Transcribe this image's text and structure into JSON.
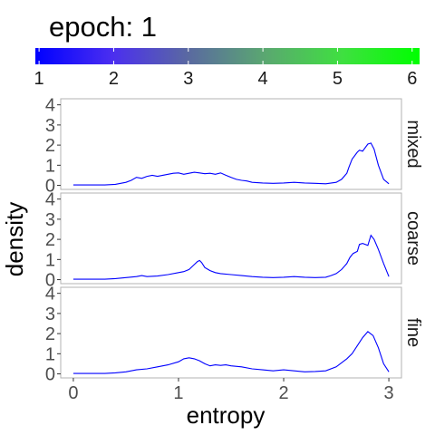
{
  "chart_data": {
    "type": "line",
    "title": "epoch: 1",
    "xlabel": "entropy",
    "ylabel": "density",
    "xlim": [
      -0.12,
      3.12
    ],
    "ylim": [
      -0.2,
      4.3
    ],
    "x_ticks": [
      0,
      1,
      2,
      3
    ],
    "y_ticks": [
      0,
      1,
      2,
      3,
      4
    ],
    "line_color": "#0000ff",
    "colorbar": {
      "min": 0.95,
      "max": 6.1,
      "ticks": [
        1,
        2,
        3,
        4,
        5,
        6
      ],
      "colors": [
        "#0000ff",
        "#4b2ef0",
        "#5a6aa0",
        "#5aa870",
        "#3fe040",
        "#00ff00"
      ]
    },
    "panels": [
      {
        "label": "mixed",
        "x": [
          0,
          0.1,
          0.2,
          0.3,
          0.4,
          0.5,
          0.55,
          0.6,
          0.65,
          0.7,
          0.75,
          0.8,
          0.85,
          0.9,
          0.95,
          1.0,
          1.05,
          1.1,
          1.15,
          1.2,
          1.25,
          1.3,
          1.35,
          1.4,
          1.45,
          1.5,
          1.55,
          1.6,
          1.65,
          1.7,
          1.8,
          1.9,
          2.0,
          2.1,
          2.2,
          2.3,
          2.4,
          2.5,
          2.55,
          2.6,
          2.62,
          2.65,
          2.7,
          2.72,
          2.75,
          2.8,
          2.83,
          2.86,
          2.9,
          2.95,
          3.0
        ],
        "y": [
          0.02,
          0.02,
          0.02,
          0.02,
          0.05,
          0.15,
          0.25,
          0.4,
          0.35,
          0.45,
          0.5,
          0.45,
          0.5,
          0.55,
          0.6,
          0.62,
          0.55,
          0.6,
          0.65,
          0.62,
          0.58,
          0.6,
          0.55,
          0.62,
          0.5,
          0.4,
          0.3,
          0.25,
          0.22,
          0.15,
          0.12,
          0.1,
          0.12,
          0.15,
          0.12,
          0.1,
          0.08,
          0.15,
          0.3,
          0.6,
          0.9,
          1.3,
          1.65,
          1.75,
          1.7,
          2.05,
          2.1,
          1.8,
          1.0,
          0.3,
          0.08
        ]
      },
      {
        "label": "coarse",
        "x": [
          0,
          0.1,
          0.2,
          0.3,
          0.4,
          0.5,
          0.6,
          0.65,
          0.7,
          0.8,
          0.9,
          1.0,
          1.05,
          1.1,
          1.15,
          1.18,
          1.2,
          1.22,
          1.25,
          1.3,
          1.35,
          1.4,
          1.5,
          1.6,
          1.7,
          1.8,
          1.9,
          2.0,
          2.1,
          2.2,
          2.3,
          2.4,
          2.45,
          2.5,
          2.55,
          2.6,
          2.63,
          2.66,
          2.7,
          2.72,
          2.75,
          2.8,
          2.83,
          2.86,
          2.9,
          2.95,
          3.0
        ],
        "y": [
          0.02,
          0.02,
          0.02,
          0.02,
          0.05,
          0.1,
          0.15,
          0.2,
          0.15,
          0.18,
          0.25,
          0.35,
          0.4,
          0.5,
          0.75,
          0.9,
          0.95,
          0.85,
          0.6,
          0.45,
          0.35,
          0.3,
          0.25,
          0.2,
          0.15,
          0.12,
          0.1,
          0.12,
          0.15,
          0.12,
          0.1,
          0.12,
          0.2,
          0.3,
          0.5,
          0.8,
          1.1,
          1.3,
          1.4,
          1.75,
          1.8,
          1.7,
          2.2,
          2.0,
          1.5,
          0.8,
          0.15
        ]
      },
      {
        "label": "fine",
        "x": [
          0,
          0.1,
          0.2,
          0.3,
          0.4,
          0.5,
          0.6,
          0.7,
          0.8,
          0.9,
          1.0,
          1.05,
          1.1,
          1.15,
          1.2,
          1.25,
          1.3,
          1.35,
          1.4,
          1.45,
          1.5,
          1.6,
          1.7,
          1.8,
          1.9,
          2.0,
          2.1,
          2.2,
          2.3,
          2.4,
          2.5,
          2.55,
          2.6,
          2.65,
          2.7,
          2.75,
          2.8,
          2.85,
          2.9,
          2.95,
          3.0
        ],
        "y": [
          0.02,
          0.02,
          0.02,
          0.02,
          0.05,
          0.1,
          0.2,
          0.25,
          0.35,
          0.45,
          0.6,
          0.75,
          0.8,
          0.75,
          0.65,
          0.5,
          0.4,
          0.45,
          0.42,
          0.45,
          0.4,
          0.35,
          0.25,
          0.2,
          0.15,
          0.2,
          0.15,
          0.1,
          0.12,
          0.15,
          0.35,
          0.55,
          0.75,
          1.0,
          1.4,
          1.8,
          2.1,
          1.9,
          1.3,
          0.5,
          0.1
        ]
      }
    ]
  }
}
